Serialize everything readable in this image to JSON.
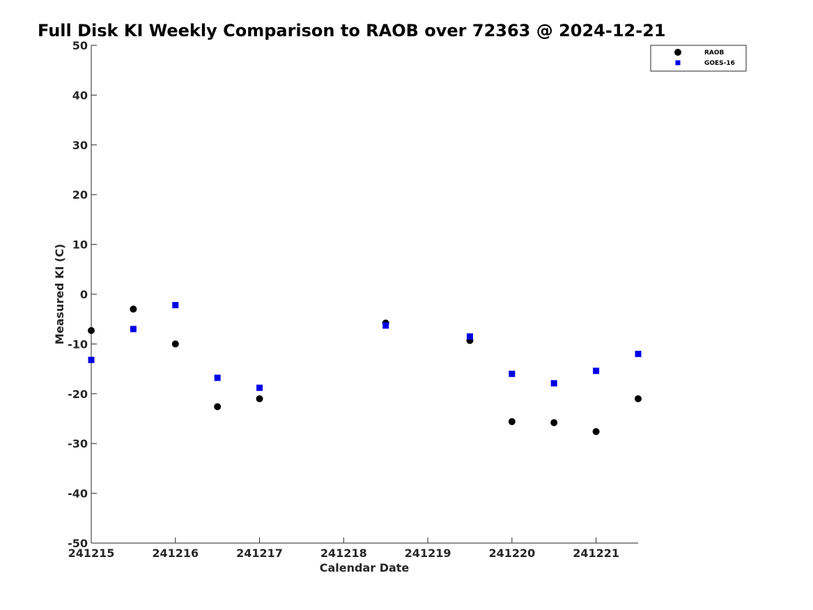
{
  "chart_data": {
    "type": "scatter",
    "title": "Full Disk KI Weekly Comparison to RAOB over 72363 @ 2024-12-21",
    "xlabel": "Calendar Date",
    "ylabel": "Measured KI (C)",
    "x_ticks": [
      "241215",
      "241216",
      "241217",
      "241218",
      "241219",
      "241220",
      "241221"
    ],
    "x_tick_values": [
      0,
      1,
      2,
      3,
      4,
      5,
      6
    ],
    "xlim": [
      0,
      6.5
    ],
    "ylim": [
      -50,
      50
    ],
    "y_ticks": [
      50,
      40,
      30,
      20,
      10,
      0,
      -10,
      -20,
      -30,
      -40,
      -50
    ],
    "grid": false,
    "legend_position": "top-right",
    "series": [
      {
        "name": "RAOB",
        "marker": "circle",
        "color": "#000000",
        "points": [
          {
            "x": 0.0,
            "y": -7.3
          },
          {
            "x": 0.5,
            "y": -3.0
          },
          {
            "x": 1.0,
            "y": -10.0
          },
          {
            "x": 1.5,
            "y": -22.6
          },
          {
            "x": 2.0,
            "y": -21.0
          },
          {
            "x": 3.5,
            "y": -5.8
          },
          {
            "x": 4.5,
            "y": -9.3
          },
          {
            "x": 5.0,
            "y": -25.6
          },
          {
            "x": 5.5,
            "y": -25.8
          },
          {
            "x": 6.0,
            "y": -27.6
          },
          {
            "x": 6.5,
            "y": -21.0
          }
        ]
      },
      {
        "name": "GOES-16",
        "marker": "square",
        "color": "#0000e6",
        "points": [
          {
            "x": 0.0,
            "y": -13.2
          },
          {
            "x": 0.5,
            "y": -7.0
          },
          {
            "x": 1.0,
            "y": -2.2
          },
          {
            "x": 1.5,
            "y": -16.8
          },
          {
            "x": 2.0,
            "y": -18.8
          },
          {
            "x": 3.5,
            "y": -6.3
          },
          {
            "x": 4.5,
            "y": -8.5
          },
          {
            "x": 5.0,
            "y": -16.0
          },
          {
            "x": 5.5,
            "y": -17.9
          },
          {
            "x": 6.0,
            "y": -15.4
          },
          {
            "x": 6.5,
            "y": -12.0
          }
        ]
      }
    ]
  }
}
